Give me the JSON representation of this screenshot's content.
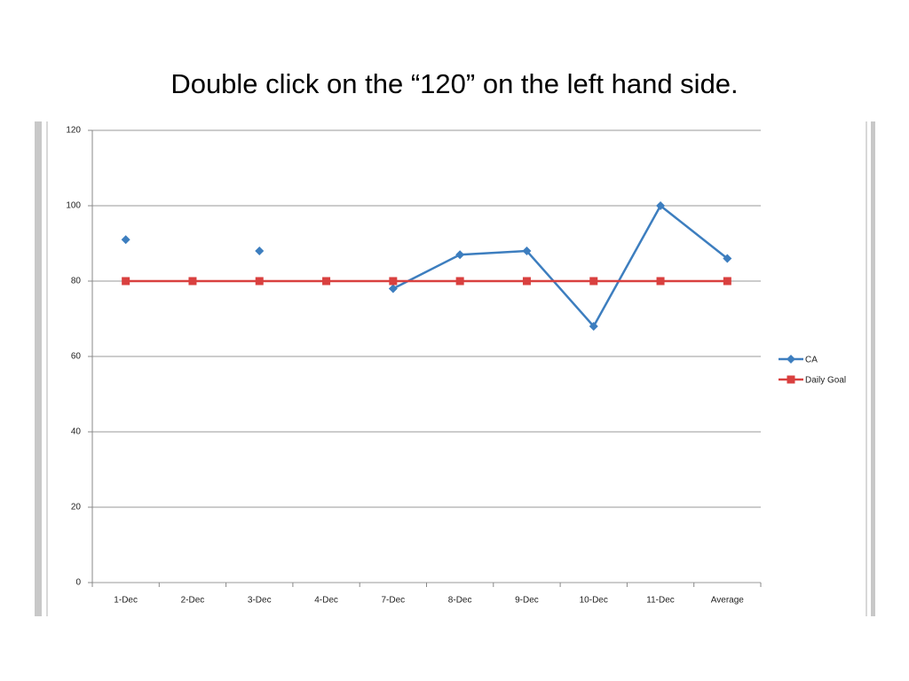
{
  "slide_title": "Double click on the “120” on the left hand side.",
  "chart_data": {
    "type": "line",
    "categories": [
      "1-Dec",
      "2-Dec",
      "3-Dec",
      "4-Dec",
      "7-Dec",
      "8-Dec",
      "9-Dec",
      "10-Dec",
      "11-Dec",
      "Average"
    ],
    "series": [
      {
        "name": "CA",
        "color": "#3d7ebf",
        "values": [
          91,
          null,
          88,
          null,
          78,
          87,
          88,
          68,
          100,
          86
        ]
      },
      {
        "name": "Daily Goal",
        "color": "#d9403f",
        "values": [
          80,
          80,
          80,
          80,
          80,
          80,
          80,
          80,
          80,
          80
        ]
      }
    ],
    "ylim": [
      0,
      120
    ],
    "yticks": [
      0,
      20,
      40,
      60,
      80,
      100,
      120
    ],
    "grid": true,
    "legend": "right"
  }
}
